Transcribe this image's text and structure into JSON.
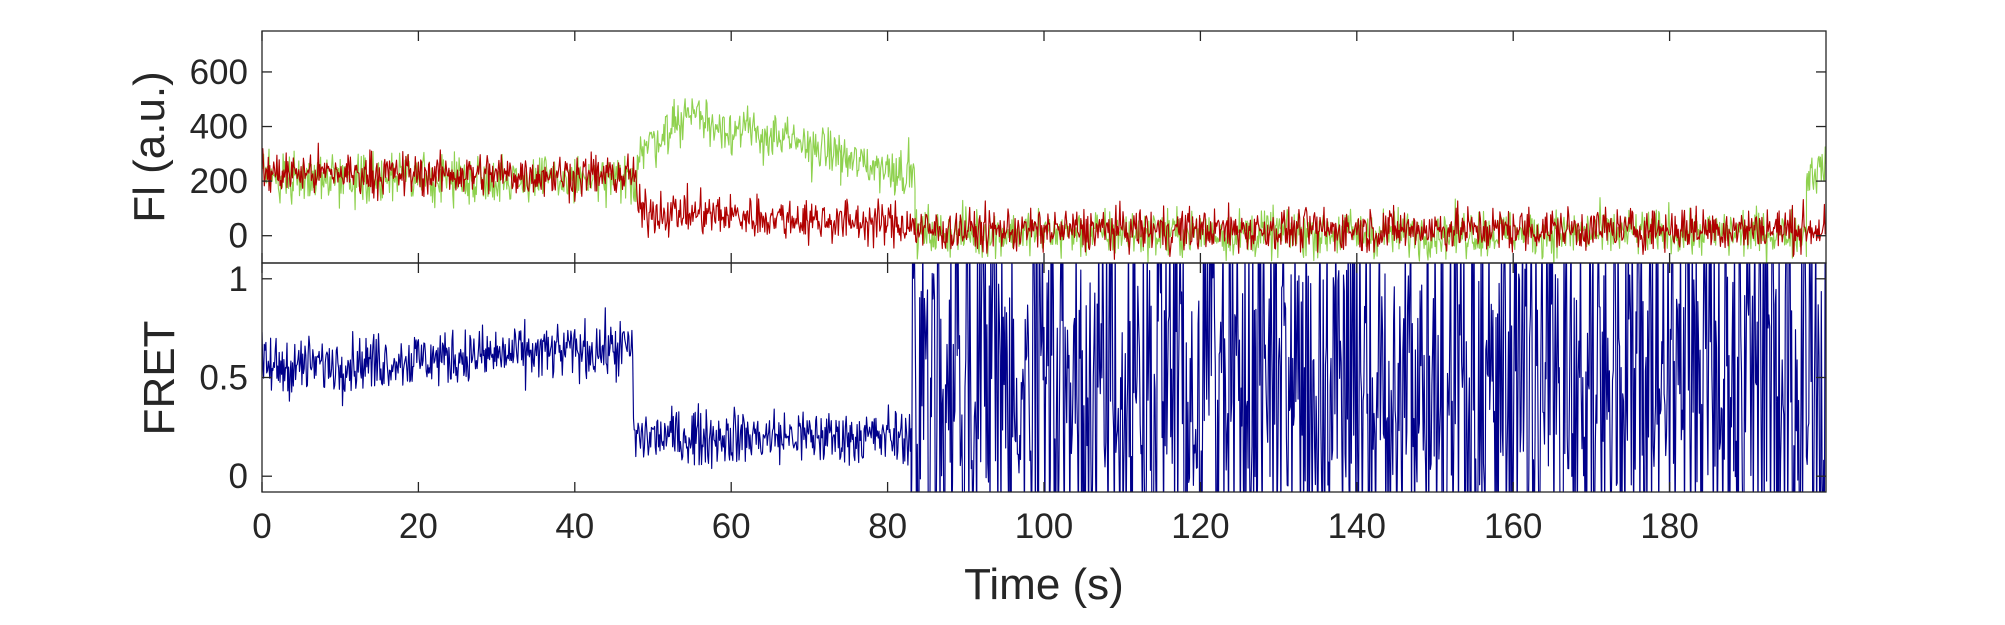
{
  "chart_data": [
    {
      "id": "fluorescence",
      "type": "line",
      "ylabel": "Fl (a.u.)",
      "xlim": [
        0,
        200
      ],
      "ylim": [
        -100,
        750
      ],
      "yticks": [
        0,
        200,
        400,
        600
      ],
      "series": [
        {
          "color": "#8fd14f",
          "noise": 60,
          "segments": [
            {
              "x0": 0,
              "x1": 48,
              "mean_start": 220,
              "mean_end": 200
            },
            {
              "x0": 48,
              "x1": 56,
              "mean_start": 300,
              "mean_end": 480
            },
            {
              "x0": 56,
              "x1": 74,
              "mean_start": 420,
              "mean_end": 300
            },
            {
              "x0": 74,
              "x1": 83.5,
              "mean_start": 280,
              "mean_end": 230
            },
            {
              "x0": 83.5,
              "x1": 197.5,
              "mean_start": 10,
              "mean_end": 10
            },
            {
              "x0": 197.5,
              "x1": 200,
              "mean_start": 220,
              "mean_end": 260
            }
          ]
        },
        {
          "color": "#b00000",
          "noise": 55,
          "segments": [
            {
              "x0": 0,
              "x1": 48,
              "mean_start": 230,
              "mean_end": 220
            },
            {
              "x0": 48,
              "x1": 83.5,
              "mean_start": 90,
              "mean_end": 40
            },
            {
              "x0": 83.5,
              "x1": 200,
              "mean_start": 20,
              "mean_end": 25
            }
          ]
        }
      ]
    },
    {
      "id": "fret",
      "type": "line",
      "ylabel": "FRET",
      "xlabel": "Time (s)",
      "xlim": [
        0,
        200
      ],
      "ylim": [
        -0.08,
        1.08
      ],
      "yticks": [
        0,
        0.5,
        1
      ],
      "yticklabels": [
        "0",
        "0.5",
        "1"
      ],
      "xticks": [
        0,
        20,
        40,
        60,
        80,
        100,
        120,
        140,
        160,
        180
      ],
      "series": [
        {
          "color": "#00008b",
          "noise": 0.1,
          "segments": [
            {
              "x0": 0,
              "x1": 47.5,
              "mean_start": 0.55,
              "mean_end": 0.65
            },
            {
              "x0": 47.5,
              "x1": 83,
              "mean_start": 0.2,
              "mean_end": 0.2
            },
            {
              "x0": 83,
              "x1": 200,
              "mean_start": 0.5,
              "mean_end": 0.5,
              "random_full": true
            }
          ]
        }
      ]
    }
  ]
}
